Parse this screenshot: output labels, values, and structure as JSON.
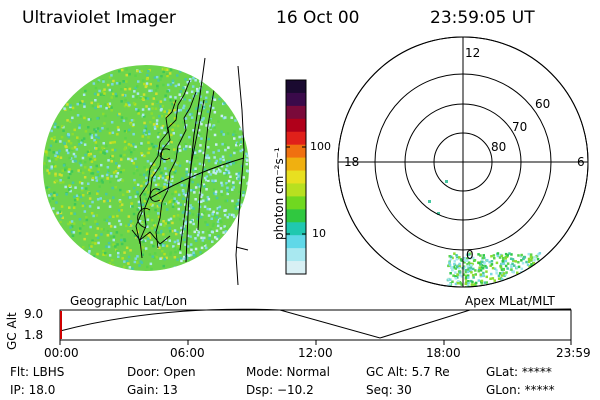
{
  "header": {
    "instrument": "Ultraviolet Imager",
    "date": "16 Oct 00",
    "time": "23:59:05 UT"
  },
  "colorbar": {
    "unit_label": "photon cm⁻²s⁻¹",
    "tick_labels": [
      "100",
      "10"
    ],
    "colors": [
      "#1a0a30",
      "#3a0a4a",
      "#7a0a3a",
      "#b0001a",
      "#e0201a",
      "#f07010",
      "#f0b010",
      "#e8e020",
      "#b8e020",
      "#70d820",
      "#30c840",
      "#20c8b0",
      "#60d8e8",
      "#a8e8f0",
      "#d8f0f4"
    ]
  },
  "left_panel": {
    "caption": "Geographic Lat/Lon"
  },
  "right_panel": {
    "caption": "Apex MLat/MLT",
    "mlt_labels": [
      "12",
      "18",
      "6",
      "0"
    ],
    "mlat_labels": [
      "60",
      "70",
      "80"
    ]
  },
  "altitude_plot": {
    "ylabel": "GC Alt",
    "yticks": [
      "9.0",
      "1.8"
    ],
    "xticks": [
      "00:00",
      "06:00",
      "12:00",
      "18:00",
      "23:59"
    ]
  },
  "status": {
    "filter": "Flt: LBHS",
    "ip": "IP: 18.0",
    "door": "Door: Open",
    "gain": "Gain: 13",
    "mode": "Mode: Normal",
    "dsp": "Dsp:   −10.2",
    "gc_alt": "GC Alt: 5.7 Re",
    "seq": "Seq: 30",
    "glat": "GLat: *****",
    "glon": "GLon: *****"
  }
}
